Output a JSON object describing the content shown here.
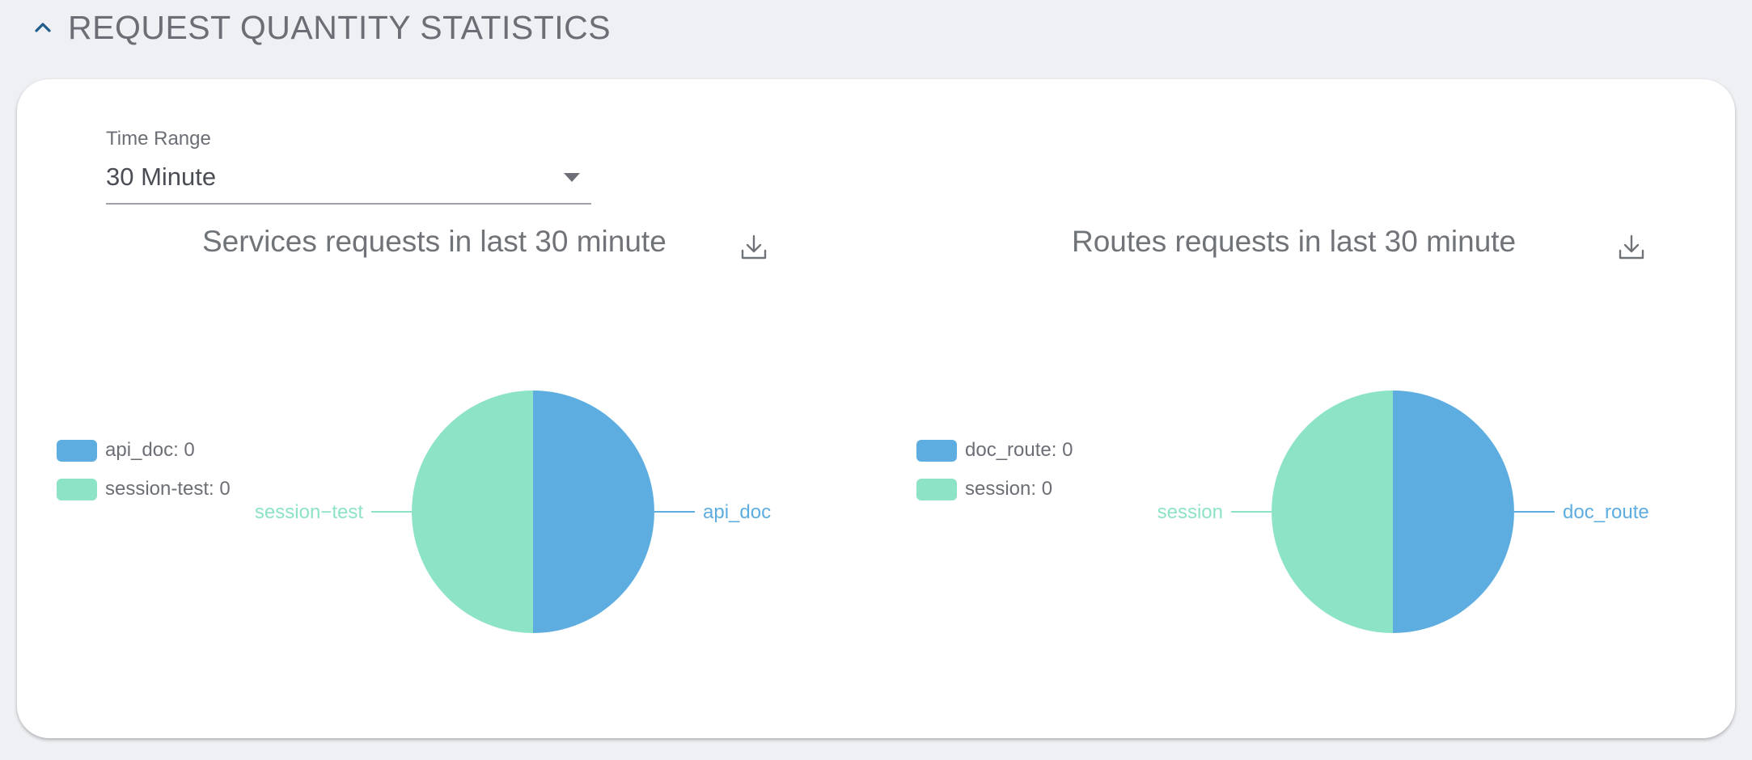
{
  "section": {
    "title": "REQUEST QUANTITY STATISTICS"
  },
  "time_range": {
    "label": "Time Range",
    "value": "30 Minute"
  },
  "colors": {
    "series_a": "#5dade0",
    "series_b": "#8de3c5"
  },
  "icons": {
    "collapse": "chevron-up-icon",
    "download": "download-icon"
  },
  "chart_data": [
    {
      "type": "pie",
      "title": "Services requests in last 30 minute",
      "labels": [
        "api_doc",
        "session-test"
      ],
      "values": [
        0,
        0
      ],
      "legend": [
        "api_doc: 0",
        "session-test: 0"
      ],
      "slice_labels": [
        "api_doc",
        "session−test"
      ],
      "legend_position": "left"
    },
    {
      "type": "pie",
      "title": "Routes requests in last 30 minute",
      "labels": [
        "doc_route",
        "session"
      ],
      "values": [
        0,
        0
      ],
      "legend": [
        "doc_route: 0",
        "session: 0"
      ],
      "slice_labels": [
        "doc_route",
        "session"
      ],
      "legend_position": "left"
    }
  ]
}
